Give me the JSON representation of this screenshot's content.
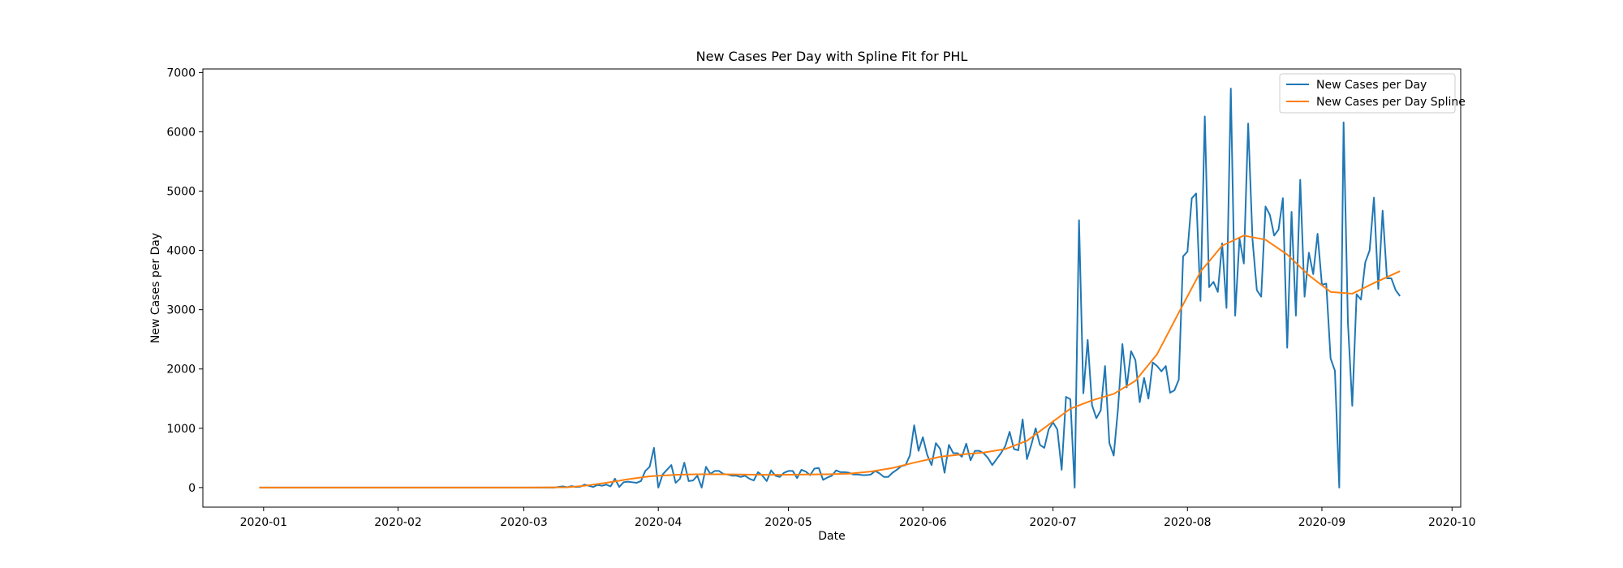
{
  "chart_data": {
    "type": "line",
    "title": "New Cases Per Day with Spline Fit for PHL",
    "xlabel": "Date",
    "ylabel": "New Cases per Day",
    "x_range": [
      "2019-12-18",
      "2020-10-03"
    ],
    "ylim": [
      -330,
      7060
    ],
    "x_ticks": [
      "2020-01-01",
      "2020-02-01",
      "2020-03-01",
      "2020-04-01",
      "2020-05-01",
      "2020-06-01",
      "2020-07-01",
      "2020-08-01",
      "2020-09-01",
      "2020-10-01"
    ],
    "x_tick_labels": [
      "2020-01",
      "2020-02",
      "2020-03",
      "2020-04",
      "2020-05",
      "2020-06",
      "2020-07",
      "2020-08",
      "2020-09",
      "2020-10"
    ],
    "y_ticks": [
      0,
      1000,
      2000,
      3000,
      4000,
      5000,
      6000,
      7000
    ],
    "y_tick_labels": [
      "0",
      "1000",
      "2000",
      "3000",
      "4000",
      "5000",
      "6000",
      "7000"
    ],
    "grid": false,
    "legend_position": "top-right",
    "series": [
      {
        "name": "New Cases per Day",
        "color": "#1f77b4",
        "points": [
          [
            "2019-12-31",
            0
          ],
          [
            "2020-03-08",
            0
          ],
          [
            "2020-03-10",
            20
          ],
          [
            "2020-03-11",
            5
          ],
          [
            "2020-03-12",
            25
          ],
          [
            "2020-03-13",
            10
          ],
          [
            "2020-03-14",
            15
          ],
          [
            "2020-03-15",
            50
          ],
          [
            "2020-03-16",
            30
          ],
          [
            "2020-03-17",
            10
          ],
          [
            "2020-03-18",
            45
          ],
          [
            "2020-03-19",
            30
          ],
          [
            "2020-03-20",
            50
          ],
          [
            "2020-03-21",
            20
          ],
          [
            "2020-03-22",
            150
          ],
          [
            "2020-03-23",
            10
          ],
          [
            "2020-03-24",
            90
          ],
          [
            "2020-03-25",
            100
          ],
          [
            "2020-03-26",
            90
          ],
          [
            "2020-03-27",
            80
          ],
          [
            "2020-03-28",
            110
          ],
          [
            "2020-03-29",
            280
          ],
          [
            "2020-03-30",
            350
          ],
          [
            "2020-03-31",
            670
          ],
          [
            "2020-04-01",
            0
          ],
          [
            "2020-04-02",
            220
          ],
          [
            "2020-04-03",
            300
          ],
          [
            "2020-04-04",
            380
          ],
          [
            "2020-04-05",
            80
          ],
          [
            "2020-04-06",
            150
          ],
          [
            "2020-04-07",
            420
          ],
          [
            "2020-04-08",
            110
          ],
          [
            "2020-04-09",
            120
          ],
          [
            "2020-04-10",
            200
          ],
          [
            "2020-04-11",
            0
          ],
          [
            "2020-04-12",
            350
          ],
          [
            "2020-04-13",
            230
          ],
          [
            "2020-04-14",
            280
          ],
          [
            "2020-04-15",
            280
          ],
          [
            "2020-04-16",
            230
          ],
          [
            "2020-04-17",
            220
          ],
          [
            "2020-04-18",
            200
          ],
          [
            "2020-04-19",
            200
          ],
          [
            "2020-04-20",
            180
          ],
          [
            "2020-04-21",
            200
          ],
          [
            "2020-04-22",
            150
          ],
          [
            "2020-04-23",
            120
          ],
          [
            "2020-04-24",
            260
          ],
          [
            "2020-04-25",
            200
          ],
          [
            "2020-04-26",
            110
          ],
          [
            "2020-04-27",
            290
          ],
          [
            "2020-04-28",
            200
          ],
          [
            "2020-04-29",
            180
          ],
          [
            "2020-04-30",
            250
          ],
          [
            "2020-05-01",
            280
          ],
          [
            "2020-05-02",
            280
          ],
          [
            "2020-05-03",
            160
          ],
          [
            "2020-05-04",
            300
          ],
          [
            "2020-05-05",
            270
          ],
          [
            "2020-05-06",
            210
          ],
          [
            "2020-05-07",
            320
          ],
          [
            "2020-05-08",
            330
          ],
          [
            "2020-05-09",
            130
          ],
          [
            "2020-05-10",
            170
          ],
          [
            "2020-05-11",
            200
          ],
          [
            "2020-05-12",
            290
          ],
          [
            "2020-05-13",
            260
          ],
          [
            "2020-05-14",
            260
          ],
          [
            "2020-05-15",
            250
          ],
          [
            "2020-05-16",
            220
          ],
          [
            "2020-05-17",
            220
          ],
          [
            "2020-05-18",
            210
          ],
          [
            "2020-05-19",
            210
          ],
          [
            "2020-05-20",
            220
          ],
          [
            "2020-05-21",
            280
          ],
          [
            "2020-05-22",
            240
          ],
          [
            "2020-05-23",
            180
          ],
          [
            "2020-05-24",
            180
          ],
          [
            "2020-05-25",
            250
          ],
          [
            "2020-05-26",
            300
          ],
          [
            "2020-05-27",
            360
          ],
          [
            "2020-05-28",
            380
          ],
          [
            "2020-05-29",
            540
          ],
          [
            "2020-05-30",
            1050
          ],
          [
            "2020-05-31",
            620
          ],
          [
            "2020-06-01",
            850
          ],
          [
            "2020-06-02",
            550
          ],
          [
            "2020-06-03",
            380
          ],
          [
            "2020-06-04",
            750
          ],
          [
            "2020-06-05",
            650
          ],
          [
            "2020-06-06",
            250
          ],
          [
            "2020-06-07",
            720
          ],
          [
            "2020-06-08",
            580
          ],
          [
            "2020-06-09",
            580
          ],
          [
            "2020-06-10",
            520
          ],
          [
            "2020-06-11",
            740
          ],
          [
            "2020-06-12",
            460
          ],
          [
            "2020-06-13",
            620
          ],
          [
            "2020-06-14",
            620
          ],
          [
            "2020-06-15",
            580
          ],
          [
            "2020-06-16",
            500
          ],
          [
            "2020-06-17",
            380
          ],
          [
            "2020-06-18",
            480
          ],
          [
            "2020-06-19",
            580
          ],
          [
            "2020-06-20",
            700
          ],
          [
            "2020-06-21",
            940
          ],
          [
            "2020-06-22",
            650
          ],
          [
            "2020-06-23",
            630
          ],
          [
            "2020-06-24",
            1150
          ],
          [
            "2020-06-25",
            480
          ],
          [
            "2020-06-26",
            720
          ],
          [
            "2020-06-27",
            1000
          ],
          [
            "2020-06-28",
            720
          ],
          [
            "2020-06-29",
            670
          ],
          [
            "2020-06-30",
            980
          ],
          [
            "2020-07-01",
            1100
          ],
          [
            "2020-07-02",
            980
          ],
          [
            "2020-07-03",
            300
          ],
          [
            "2020-07-04",
            1530
          ],
          [
            "2020-07-05",
            1490
          ],
          [
            "2020-07-06",
            0
          ],
          [
            "2020-07-07",
            4510
          ],
          [
            "2020-07-08",
            1590
          ],
          [
            "2020-07-09",
            2490
          ],
          [
            "2020-07-10",
            1390
          ],
          [
            "2020-07-11",
            1170
          ],
          [
            "2020-07-12",
            1300
          ],
          [
            "2020-07-13",
            2050
          ],
          [
            "2020-07-14",
            750
          ],
          [
            "2020-07-15",
            540
          ],
          [
            "2020-07-16",
            1340
          ],
          [
            "2020-07-17",
            2420
          ],
          [
            "2020-07-18",
            1690
          ],
          [
            "2020-07-19",
            2300
          ],
          [
            "2020-07-20",
            2150
          ],
          [
            "2020-07-21",
            1440
          ],
          [
            "2020-07-22",
            1850
          ],
          [
            "2020-07-23",
            1500
          ],
          [
            "2020-07-24",
            2110
          ],
          [
            "2020-07-25",
            2050
          ],
          [
            "2020-07-26",
            1960
          ],
          [
            "2020-07-27",
            2050
          ],
          [
            "2020-07-28",
            1600
          ],
          [
            "2020-07-29",
            1640
          ],
          [
            "2020-07-30",
            1820
          ],
          [
            "2020-07-31",
            3900
          ],
          [
            "2020-08-01",
            3980
          ],
          [
            "2020-08-02",
            4880
          ],
          [
            "2020-08-03",
            4960
          ],
          [
            "2020-08-04",
            3150
          ],
          [
            "2020-08-05",
            6260
          ],
          [
            "2020-08-06",
            3380
          ],
          [
            "2020-08-07",
            3470
          ],
          [
            "2020-08-08",
            3300
          ],
          [
            "2020-08-09",
            4120
          ],
          [
            "2020-08-10",
            3030
          ],
          [
            "2020-08-11",
            6730
          ],
          [
            "2020-08-12",
            2900
          ],
          [
            "2020-08-13",
            4200
          ],
          [
            "2020-08-14",
            3780
          ],
          [
            "2020-08-15",
            6140
          ],
          [
            "2020-08-16",
            4180
          ],
          [
            "2020-08-17",
            3330
          ],
          [
            "2020-08-18",
            3220
          ],
          [
            "2020-08-19",
            4740
          ],
          [
            "2020-08-20",
            4600
          ],
          [
            "2020-08-21",
            4250
          ],
          [
            "2020-08-22",
            4350
          ],
          [
            "2020-08-23",
            4880
          ],
          [
            "2020-08-24",
            2360
          ],
          [
            "2020-08-25",
            4650
          ],
          [
            "2020-08-26",
            2900
          ],
          [
            "2020-08-27",
            5190
          ],
          [
            "2020-08-28",
            3220
          ],
          [
            "2020-08-29",
            3960
          ],
          [
            "2020-08-30",
            3600
          ],
          [
            "2020-08-31",
            4280
          ],
          [
            "2020-09-01",
            3420
          ],
          [
            "2020-09-02",
            3440
          ],
          [
            "2020-09-03",
            2180
          ],
          [
            "2020-09-04",
            1970
          ],
          [
            "2020-09-05",
            0
          ],
          [
            "2020-09-06",
            6160
          ],
          [
            "2020-09-07",
            2780
          ],
          [
            "2020-09-08",
            1380
          ],
          [
            "2020-09-09",
            3260
          ],
          [
            "2020-09-10",
            3170
          ],
          [
            "2020-09-11",
            3800
          ],
          [
            "2020-09-12",
            4000
          ],
          [
            "2020-09-13",
            4890
          ],
          [
            "2020-09-14",
            3350
          ],
          [
            "2020-09-15",
            4670
          ],
          [
            "2020-09-16",
            3530
          ],
          [
            "2020-09-17",
            3530
          ],
          [
            "2020-09-18",
            3330
          ],
          [
            "2020-09-19",
            3230
          ]
        ]
      },
      {
        "name": "New Cases per Day Spline",
        "color": "#ff7f0e",
        "points": [
          [
            "2019-12-31",
            0
          ],
          [
            "2020-01-20",
            0
          ],
          [
            "2020-02-10",
            0
          ],
          [
            "2020-03-01",
            0
          ],
          [
            "2020-03-11",
            5
          ],
          [
            "2020-03-15",
            30
          ],
          [
            "2020-03-20",
            80
          ],
          [
            "2020-03-25",
            140
          ],
          [
            "2020-03-30",
            190
          ],
          [
            "2020-04-05",
            215
          ],
          [
            "2020-04-10",
            225
          ],
          [
            "2020-04-15",
            225
          ],
          [
            "2020-04-20",
            220
          ],
          [
            "2020-04-25",
            215
          ],
          [
            "2020-04-30",
            215
          ],
          [
            "2020-05-05",
            220
          ],
          [
            "2020-05-10",
            225
          ],
          [
            "2020-05-15",
            235
          ],
          [
            "2020-05-20",
            270
          ],
          [
            "2020-05-25",
            330
          ],
          [
            "2020-05-30",
            420
          ],
          [
            "2020-06-05",
            520
          ],
          [
            "2020-06-10",
            560
          ],
          [
            "2020-06-15",
            590
          ],
          [
            "2020-06-20",
            650
          ],
          [
            "2020-06-25",
            790
          ],
          [
            "2020-06-30",
            1060
          ],
          [
            "2020-07-05",
            1330
          ],
          [
            "2020-07-10",
            1470
          ],
          [
            "2020-07-15",
            1580
          ],
          [
            "2020-07-20",
            1800
          ],
          [
            "2020-07-25",
            2250
          ],
          [
            "2020-07-30",
            2950
          ],
          [
            "2020-08-04",
            3640
          ],
          [
            "2020-08-09",
            4080
          ],
          [
            "2020-08-14",
            4250
          ],
          [
            "2020-08-19",
            4180
          ],
          [
            "2020-08-24",
            3930
          ],
          [
            "2020-08-29",
            3580
          ],
          [
            "2020-09-03",
            3300
          ],
          [
            "2020-09-08",
            3270
          ],
          [
            "2020-09-13",
            3450
          ],
          [
            "2020-09-19",
            3650
          ]
        ]
      }
    ]
  }
}
